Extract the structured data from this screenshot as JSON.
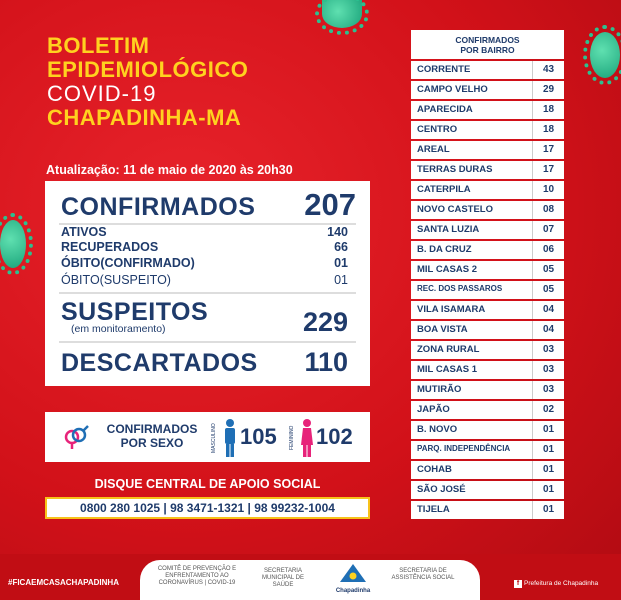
{
  "header": {
    "line1": "BOLETIM",
    "line2": "EPIDEMIOLÓGICO",
    "line3": "COVID-19",
    "line4": "CHAPADINHA-MA"
  },
  "update": "Atualização: 11 de maio de 2020 às 20h30",
  "stats": {
    "confirmados_label": "CONFIRMADOS",
    "confirmados_value": "207",
    "ativos_label": "ATIVOS",
    "ativos_value": "140",
    "recuperados_label": "RECUPERADOS",
    "recuperados_value": "66",
    "obito_conf_label": "ÓBITO(CONFIRMADO)",
    "obito_conf_value": "01",
    "obito_susp_label": "ÓBITO(SUSPEITO)",
    "obito_susp_value": "01",
    "suspeitos_label": "SUSPEITOS",
    "suspeitos_sub": "(em monitoramento)",
    "suspeitos_value": "229",
    "descartados_label": "DESCARTADOS",
    "descartados_value": "110"
  },
  "sexo": {
    "label1": "CONFIRMADOS",
    "label2": "POR SEXO",
    "masc_label": "MASCULINO",
    "masc_value": "105",
    "fem_label": "FEMININO",
    "fem_value": "102"
  },
  "social": {
    "title": "DISQUE CENTRAL DE APOIO SOCIAL",
    "phones": "0800 280 1025  |  98 3471-1321  |  98 99232-1004"
  },
  "bairros": {
    "title1": "CONFIRMADOS",
    "title2": "POR BAIRRO",
    "rows": [
      {
        "name": "CORRENTE",
        "value": "43"
      },
      {
        "name": "CAMPO VELHO",
        "value": "29"
      },
      {
        "name": "APARECIDA",
        "value": "18"
      },
      {
        "name": "CENTRO",
        "value": "18"
      },
      {
        "name": "AREAL",
        "value": "17"
      },
      {
        "name": "TERRAS DURAS",
        "value": "17"
      },
      {
        "name": "CATERPILA",
        "value": "10"
      },
      {
        "name": "NOVO CASTELO",
        "value": "08"
      },
      {
        "name": "SANTA LUZIA",
        "value": "07"
      },
      {
        "name": "B. DA CRUZ",
        "value": "06"
      },
      {
        "name": "MIL CASAS 2",
        "value": "05"
      },
      {
        "name": "REC. DOS PASSAROS",
        "value": "05"
      },
      {
        "name": "VILA ISAMARA",
        "value": "04"
      },
      {
        "name": "BOA VISTA",
        "value": "04"
      },
      {
        "name": "ZONA RURAL",
        "value": "03"
      },
      {
        "name": "MIL CASAS 1",
        "value": "03"
      },
      {
        "name": "MUTIRÃO",
        "value": "03"
      },
      {
        "name": "JAPÃO",
        "value": "02"
      },
      {
        "name": "B. NOVO",
        "value": "01"
      },
      {
        "name": "PARQ. INDEPENDÊNCIA",
        "value": "01"
      },
      {
        "name": "COHAB",
        "value": "01"
      },
      {
        "name": "SÃO JOSÉ",
        "value": "01"
      },
      {
        "name": "TIJELA",
        "value": "01"
      }
    ]
  },
  "footer": {
    "hashtag": "#FICAEMCASACHAPADINHA",
    "comite": "COMITÊ DE PREVENÇÃO E ENFRENTAMENTO AO CORONAVÍRUS | COVID-19",
    "sec_saude": "SECRETARIA MUNICIPAL DE SAÚDE",
    "logo": "Chapadinha",
    "sec_social": "SECRETARIA DE ASSISTÊNCIA SOCIAL",
    "prefeitura": "Prefeitura de Chapadinha"
  },
  "colors": {
    "bg": "#d9141c",
    "yellow": "#ffd21f",
    "navy": "#1f3b6b",
    "virus": "#2cc08f"
  }
}
